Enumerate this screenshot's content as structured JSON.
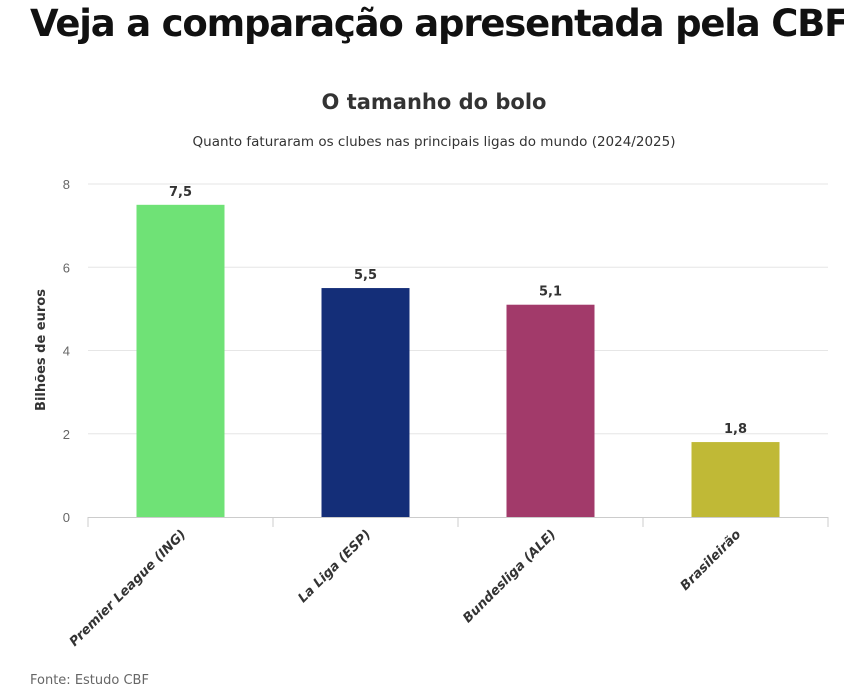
{
  "headline": "Veja a comparação apresentada pela CBF:",
  "source": "Fonte: Estudo CBF",
  "chart_data": {
    "type": "bar",
    "title": "O tamanho do bolo",
    "subtitle": "Quanto faturaram os clubes nas principais ligas do mundo (2024/2025)",
    "xlabel": "",
    "ylabel": "Bilhões de euros",
    "ylim": [
      0,
      8
    ],
    "yticks": [
      0,
      2,
      4,
      6,
      8
    ],
    "grid": true,
    "categories": [
      "Premier League (ING)",
      "La Liga (ESP)",
      "Bundesliga (ALE)",
      "Brasileirão"
    ],
    "values": [
      7.5,
      5.5,
      5.1,
      1.8
    ],
    "data_labels": [
      "7,5",
      "5,5",
      "5,1",
      "1,8"
    ],
    "colors": [
      "#6fe276",
      "#142e78",
      "#a23a6a",
      "#c0b936"
    ]
  }
}
